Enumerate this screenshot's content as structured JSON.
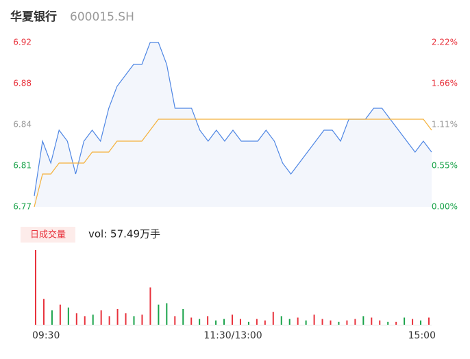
{
  "title": "华夏银行",
  "code": "600015.SH",
  "chart_data": [
    {
      "type": "line",
      "x": [
        0,
        5,
        10,
        15,
        20,
        25,
        30,
        35,
        40,
        45,
        50,
        55,
        60,
        65,
        70,
        75,
        80,
        85,
        90,
        95,
        100,
        105,
        110,
        115,
        120,
        125,
        130,
        135,
        140,
        145,
        150,
        155,
        160,
        165,
        170,
        175,
        180,
        185,
        190,
        195,
        200,
        205,
        210,
        215,
        220,
        225,
        230,
        235,
        240
      ],
      "xlim": [
        0,
        240
      ],
      "xticks": [
        {
          "value": 0,
          "label": "09:30"
        },
        {
          "value": 120,
          "label": "11:30/13:00"
        },
        {
          "value": 240,
          "label": "15:00"
        }
      ],
      "ylim": [
        6.77,
        6.92
      ],
      "yticks": [
        {
          "value": 6.77,
          "label": "6.77"
        },
        {
          "value": 6.8075,
          "label": "6.81"
        },
        {
          "value": 6.845,
          "label": "6.84"
        },
        {
          "value": 6.8825,
          "label": "6.88"
        },
        {
          "value": 6.92,
          "label": "6.92"
        }
      ],
      "ytick_colors": [
        "#1aa34a",
        "#1aa34a",
        "#999999",
        "#e8323c",
        "#e8323c"
      ],
      "y2lim": [
        0,
        2.22
      ],
      "y2ticks": [
        {
          "value": 0,
          "label": "0.00%"
        },
        {
          "value": 0.555,
          "label": "0.55%"
        },
        {
          "value": 1.11,
          "label": "1.11%"
        },
        {
          "value": 1.665,
          "label": "1.66%"
        },
        {
          "value": 2.22,
          "label": "2.22%"
        }
      ],
      "area_color": "#f3f6fc",
      "series": [
        {
          "color": "#4e86e4",
          "area": true,
          "values": [
            6.78,
            6.83,
            6.81,
            6.84,
            6.83,
            6.8,
            6.83,
            6.84,
            6.83,
            6.86,
            6.88,
            6.89,
            6.9,
            6.9,
            6.92,
            6.92,
            6.9,
            6.86,
            6.86,
            6.86,
            6.84,
            6.83,
            6.84,
            6.83,
            6.84,
            6.83,
            6.83,
            6.83,
            6.84,
            6.83,
            6.81,
            6.8,
            6.81,
            6.82,
            6.83,
            6.84,
            6.84,
            6.83,
            6.85,
            6.85,
            6.85,
            6.86,
            6.86,
            6.85,
            6.84,
            6.83,
            6.82,
            6.83,
            6.82
          ]
        },
        {
          "color": "#f4b13a",
          "area": false,
          "values": [
            6.77,
            6.8,
            6.8,
            6.81,
            6.81,
            6.81,
            6.81,
            6.82,
            6.82,
            6.82,
            6.83,
            6.83,
            6.83,
            6.83,
            6.84,
            6.85,
            6.85,
            6.85,
            6.85,
            6.85,
            6.85,
            6.85,
            6.85,
            6.85,
            6.85,
            6.85,
            6.85,
            6.85,
            6.85,
            6.85,
            6.85,
            6.85,
            6.85,
            6.85,
            6.85,
            6.85,
            6.85,
            6.85,
            6.85,
            6.85,
            6.85,
            6.85,
            6.85,
            6.85,
            6.85,
            6.85,
            6.85,
            6.85,
            6.84
          ]
        }
      ]
    },
    {
      "type": "bar",
      "legend_label": "日成交量",
      "legend_text": "vol: 57.49万手",
      "x": [
        0,
        5,
        10,
        15,
        20,
        25,
        30,
        35,
        40,
        45,
        50,
        55,
        60,
        65,
        70,
        75,
        80,
        85,
        90,
        95,
        100,
        105,
        110,
        115,
        120,
        125,
        130,
        135,
        140,
        145,
        150,
        155,
        160,
        165,
        170,
        175,
        180,
        185,
        190,
        195,
        200,
        205,
        210,
        215,
        220,
        225,
        230,
        235,
        240
      ],
      "xlim": [
        0,
        240
      ],
      "ylim": [
        0,
        2.6
      ],
      "values": [
        2.6,
        0.9,
        0.5,
        0.7,
        0.6,
        0.4,
        0.3,
        0.35,
        0.5,
        0.3,
        0.55,
        0.4,
        0.3,
        0.35,
        1.3,
        0.7,
        0.75,
        0.3,
        0.55,
        0.25,
        0.2,
        0.3,
        0.15,
        0.2,
        0.35,
        0.2,
        0.1,
        0.2,
        0.15,
        0.45,
        0.3,
        0.2,
        0.25,
        0.15,
        0.35,
        0.2,
        0.15,
        0.1,
        0.15,
        0.2,
        0.3,
        0.25,
        0.15,
        0.1,
        0.1,
        0.25,
        0.2,
        0.15,
        0.25
      ],
      "colors": [
        "#e8323c",
        "#e8323c",
        "#1aa34a",
        "#e8323c",
        "#1aa34a",
        "#e8323c",
        "#e8323c",
        "#1aa34a",
        "#e8323c",
        "#e8323c",
        "#e8323c",
        "#e8323c",
        "#1aa34a",
        "#e8323c",
        "#e8323c",
        "#1aa34a",
        "#1aa34a",
        "#e8323c",
        "#1aa34a",
        "#e8323c",
        "#1aa34a",
        "#e8323c",
        "#1aa34a",
        "#1aa34a",
        "#e8323c",
        "#e8323c",
        "#1aa34a",
        "#e8323c",
        "#e8323c",
        "#e8323c",
        "#1aa34a",
        "#1aa34a",
        "#e8323c",
        "#1aa34a",
        "#e8323c",
        "#e8323c",
        "#e8323c",
        "#1aa34a",
        "#e8323c",
        "#e8323c",
        "#1aa34a",
        "#e8323c",
        "#e8323c",
        "#1aa34a",
        "#e8323c",
        "#1aa34a",
        "#e8323c",
        "#1aa34a",
        "#e8323c"
      ]
    }
  ]
}
